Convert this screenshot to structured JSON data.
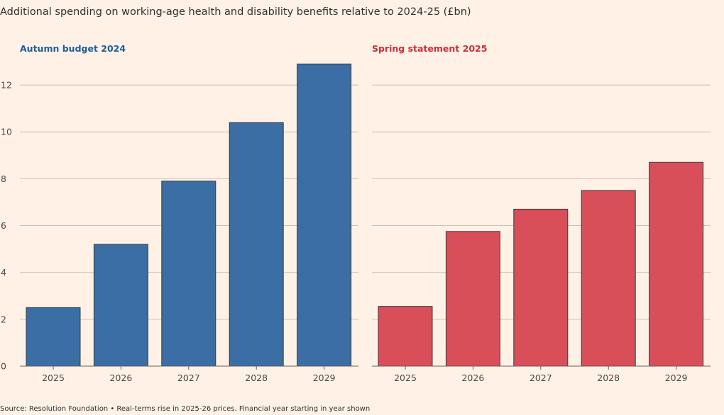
{
  "title": "Additional spending on working-age health and disability benefits relative to 2024-25 (£bn)",
  "source": "Source: Resolution Foundation • Real-terms rise in 2025-26 prices. Financial year starting in year shown",
  "colors": {
    "background": "#fff1e5",
    "gridline": "#ccc1b7",
    "autumn": "#3a6ea5",
    "autumn_title": "#1f5d99",
    "spring": "#d84e59",
    "spring_title": "#c8303d"
  },
  "chart_data": [
    {
      "type": "bar",
      "title": "Autumn budget 2024",
      "categories": [
        "2025",
        "2026",
        "2027",
        "2028",
        "2029"
      ],
      "values": [
        2.5,
        5.2,
        7.9,
        10.4,
        12.9
      ],
      "ylim": [
        0,
        13
      ],
      "yticks": [
        "0",
        "2",
        "4",
        "6",
        "8",
        "10",
        "12"
      ],
      "grid": true,
      "xlabel": "",
      "ylabel": ""
    },
    {
      "type": "bar",
      "title": "Spring statement 2025",
      "categories": [
        "2025",
        "2026",
        "2027",
        "2028",
        "2029"
      ],
      "values": [
        2.55,
        5.75,
        6.7,
        7.5,
        8.7
      ],
      "ylim": [
        0,
        13
      ],
      "yticks": [
        "0",
        "2",
        "4",
        "6",
        "8",
        "10",
        "12"
      ],
      "grid": true,
      "xlabel": "",
      "ylabel": ""
    }
  ]
}
